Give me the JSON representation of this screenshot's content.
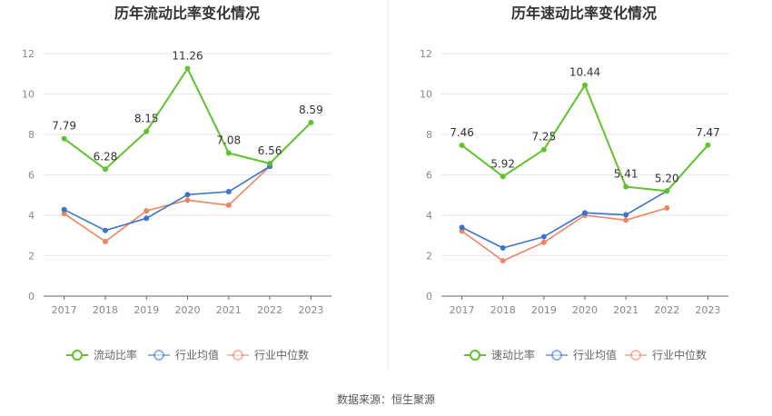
{
  "source_text": "数据来源：恒生聚源",
  "colors": {
    "main": "#5ec42a",
    "industry_avg": "#3a73d1",
    "industry_median": "#f08460"
  },
  "chart_data": [
    {
      "type": "line",
      "title": "历年流动比率变化情况",
      "x": [
        "2017",
        "2018",
        "2019",
        "2020",
        "2021",
        "2022",
        "2023"
      ],
      "ylim": [
        0,
        12
      ],
      "yticks": [
        "0",
        "2",
        "4",
        "6",
        "8",
        "10",
        "12"
      ],
      "grid": true,
      "legend_position": "bottom",
      "series": [
        {
          "name": "流动比率",
          "values": [
            7.79,
            6.28,
            8.15,
            11.26,
            7.08,
            6.56,
            8.59
          ],
          "labels": [
            "7.79",
            "6.28",
            "8.15",
            "11.26",
            "7.08",
            "6.56",
            "8.59"
          ]
        },
        {
          "name": "行业均值",
          "values": [
            4.28,
            3.25,
            3.85,
            5.02,
            5.17,
            6.42,
            null
          ]
        },
        {
          "name": "行业中位数",
          "values": [
            4.08,
            2.7,
            4.22,
            4.75,
            4.5,
            6.42,
            null
          ]
        }
      ]
    },
    {
      "type": "line",
      "title": "历年速动比率变化情况",
      "x": [
        "2017",
        "2018",
        "2019",
        "2020",
        "2021",
        "2022",
        "2023"
      ],
      "ylim": [
        0,
        12
      ],
      "yticks": [
        "0",
        "2",
        "4",
        "6",
        "8",
        "10",
        "12"
      ],
      "grid": true,
      "legend_position": "bottom",
      "series": [
        {
          "name": "速动比率",
          "values": [
            7.46,
            5.92,
            7.25,
            10.44,
            5.41,
            5.2,
            7.47
          ],
          "labels": [
            "7.46",
            "5.92",
            "7.25",
            "10.44",
            "5.41",
            "5.20",
            "7.47"
          ]
        },
        {
          "name": "行业均值",
          "values": [
            3.4,
            2.38,
            2.94,
            4.12,
            4.02,
            5.2,
            null
          ]
        },
        {
          "name": "行业中位数",
          "values": [
            3.22,
            1.75,
            2.66,
            4.0,
            3.76,
            4.36,
            null
          ]
        }
      ]
    }
  ]
}
